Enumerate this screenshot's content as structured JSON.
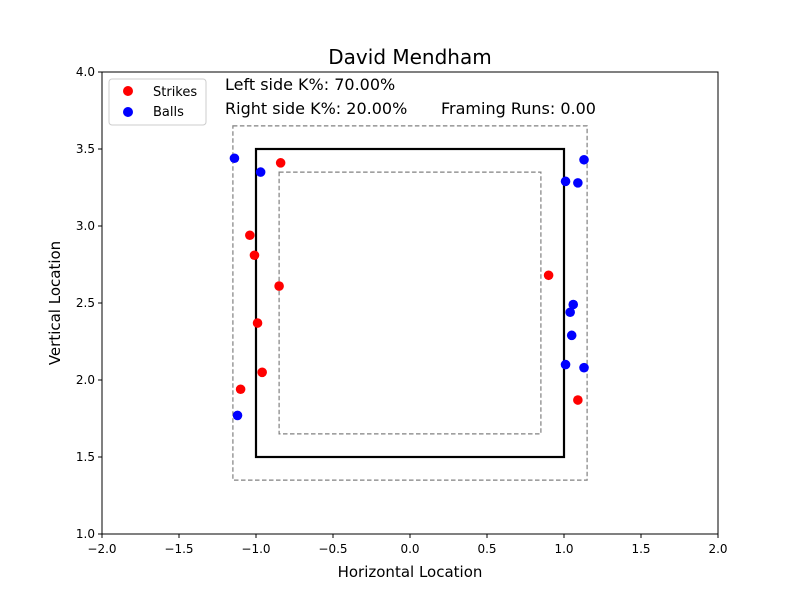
{
  "chart_data": {
    "type": "scatter",
    "title": "David Mendham",
    "xlabel": "Horizontal Location",
    "ylabel": "Vertical Location",
    "xlim": [
      -2.0,
      2.0
    ],
    "ylim": [
      1.0,
      4.0
    ],
    "x_ticks": [
      "−2.0",
      "−1.5",
      "−1.0",
      "−0.5",
      "0.0",
      "0.5",
      "1.0",
      "1.5",
      "2.0"
    ],
    "y_ticks": [
      "1.0",
      "1.5",
      "2.0",
      "2.5",
      "3.0",
      "3.5",
      "4.0"
    ],
    "grid": false,
    "legend_position": "top-left",
    "annotations": {
      "left_k": "Left side K%: 70.00%",
      "right_k": "Right side K%: 20.00%",
      "framing": "Framing Runs: 0.00"
    },
    "zones": {
      "strike_zone": {
        "x": [
          -1.0,
          1.0
        ],
        "y": [
          1.5,
          3.5
        ],
        "style": "solid"
      },
      "outer_zone": {
        "x": [
          -1.15,
          1.15
        ],
        "y": [
          1.35,
          3.65
        ],
        "style": "dashed"
      },
      "inner_zone": {
        "x": [
          -0.85,
          0.85
        ],
        "y": [
          1.65,
          3.35
        ],
        "style": "dashed"
      }
    },
    "series": [
      {
        "name": "Strikes",
        "color": "#ff0000",
        "points": [
          {
            "x": -0.84,
            "y": 3.41
          },
          {
            "x": -1.04,
            "y": 2.94
          },
          {
            "x": -1.01,
            "y": 2.81
          },
          {
            "x": -0.85,
            "y": 2.61
          },
          {
            "x": -0.99,
            "y": 2.37
          },
          {
            "x": -0.96,
            "y": 2.05
          },
          {
            "x": -1.1,
            "y": 1.94
          },
          {
            "x": 0.9,
            "y": 2.68
          },
          {
            "x": 1.09,
            "y": 1.87
          }
        ]
      },
      {
        "name": "Balls",
        "color": "#0000ff",
        "points": [
          {
            "x": -1.14,
            "y": 3.44
          },
          {
            "x": -0.97,
            "y": 3.35
          },
          {
            "x": -1.12,
            "y": 1.77
          },
          {
            "x": 1.01,
            "y": 3.29
          },
          {
            "x": 1.09,
            "y": 3.28
          },
          {
            "x": 1.13,
            "y": 3.43
          },
          {
            "x": 1.06,
            "y": 2.49
          },
          {
            "x": 1.04,
            "y": 2.44
          },
          {
            "x": 1.05,
            "y": 2.29
          },
          {
            "x": 1.01,
            "y": 2.1
          },
          {
            "x": 1.13,
            "y": 2.08
          }
        ]
      }
    ]
  }
}
